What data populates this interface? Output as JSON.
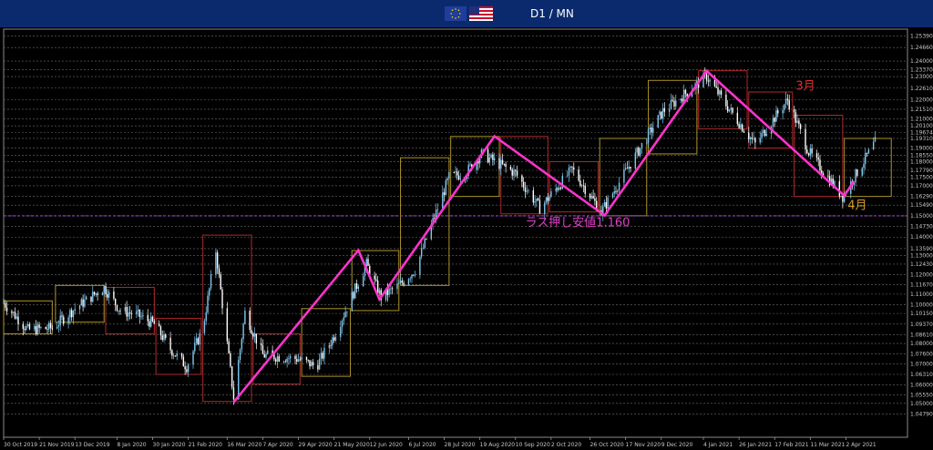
{
  "header": {
    "title": "D1 / MN",
    "flag_left_icon": "eu-flag-icon",
    "flag_right_icon": "us-flag-icon"
  },
  "chart_data": {
    "type": "candlestick",
    "title": "D1 / MN",
    "ylim": [
      1.0455,
      1.2565
    ],
    "xlim": [
      "2019-10-30",
      "2021-05-10"
    ],
    "grid": true,
    "y_tick_labels": [
      {
        "v": 1.253,
        "label": "1.25390"
      },
      {
        "v": 1.247,
        "label": "1.24660"
      },
      {
        "v": 1.24,
        "label": "1.24000"
      },
      {
        "v": 1.2355,
        "label": "1.23370"
      },
      {
        "v": 1.232,
        "label": "1.23000"
      },
      {
        "v": 1.226,
        "label": "1.22610"
      },
      {
        "v": 1.22,
        "label": "1.22000"
      },
      {
        "v": 1.2151,
        "label": "1.21510"
      },
      {
        "v": 1.21,
        "label": "1.21000"
      },
      {
        "v": 1.2065,
        "label": "1.20100"
      },
      {
        "v": 1.2031,
        "label": "1.19674"
      },
      {
        "v": 1.2,
        "label": "1.19310"
      },
      {
        "v": 1.195,
        "label": "1.19000"
      },
      {
        "v": 1.1913,
        "label": "1.18550"
      },
      {
        "v": 1.188,
        "label": "1.18000"
      },
      {
        "v": 1.1835,
        "label": "1.17790"
      },
      {
        "v": 1.18,
        "label": "1.17500"
      },
      {
        "v": 1.1755,
        "label": "1.17000"
      },
      {
        "v": 1.17,
        "label": "1.16290"
      },
      {
        "v": 1.1655,
        "label": "1.15490"
      },
      {
        "v": 1.16,
        "label": "1.15000"
      },
      {
        "v": 1.1545,
        "label": "1.14730"
      },
      {
        "v": 1.149,
        "label": "1.14000"
      },
      {
        "v": 1.143,
        "label": "1.13590"
      },
      {
        "v": 1.1395,
        "label": "1.13000"
      },
      {
        "v": 1.135,
        "label": "1.12430"
      },
      {
        "v": 1.1295,
        "label": "1.12000"
      },
      {
        "v": 1.1245,
        "label": "1.11670"
      },
      {
        "v": 1.1195,
        "label": "1.11000"
      },
      {
        "v": 1.114,
        "label": "1.10000"
      },
      {
        "v": 1.1095,
        "label": "1.10150"
      },
      {
        "v": 1.104,
        "label": "1.09370"
      },
      {
        "v": 1.0985,
        "label": "1.08610"
      },
      {
        "v": 1.094,
        "label": "1.08000"
      },
      {
        "v": 1.0885,
        "label": "1.07600"
      },
      {
        "v": 1.0835,
        "label": "1.07000"
      },
      {
        "v": 1.078,
        "label": "1.06310"
      },
      {
        "v": 1.0725,
        "label": "1.06000"
      },
      {
        "v": 1.0675,
        "label": "1.05550"
      },
      {
        "v": 1.063,
        "label": "1.05000"
      },
      {
        "v": 1.0575,
        "label": "1.04790"
      }
    ],
    "x_tick_labels": [
      {
        "d": "2019-10-30",
        "label": "30 Oct 2019"
      },
      {
        "d": "2019-11-21",
        "label": "21 Nov 2019"
      },
      {
        "d": "2019-12-13",
        "label": "13 Dec 2019"
      },
      {
        "d": "2020-01-08",
        "label": "8 Jan 2020"
      },
      {
        "d": "2020-01-30",
        "label": "30 Jan 2020"
      },
      {
        "d": "2020-02-21",
        "label": "21 Feb 2020"
      },
      {
        "d": "2020-03-16",
        "label": "16 Mar 2020"
      },
      {
        "d": "2020-04-07",
        "label": "7 Apr 2020"
      },
      {
        "d": "2020-04-29",
        "label": "29 Apr 2020"
      },
      {
        "d": "2020-05-21",
        "label": "21 May 2020"
      },
      {
        "d": "2020-06-12",
        "label": "12 Jun 2020"
      },
      {
        "d": "2020-07-06",
        "label": "6 Jul 2020"
      },
      {
        "d": "2020-07-28",
        "label": "28 Jul 2020"
      },
      {
        "d": "2020-08-19",
        "label": "19 Aug 2020"
      },
      {
        "d": "2020-09-10",
        "label": "10 Sep 2020"
      },
      {
        "d": "2020-10-02",
        "label": "2 Oct 2020"
      },
      {
        "d": "2020-10-26",
        "label": "26 Oct 2020"
      },
      {
        "d": "2020-11-17",
        "label": "17 Nov 2020"
      },
      {
        "d": "2020-12-09",
        "label": "9 Dec 2020"
      },
      {
        "d": "2021-01-04",
        "label": "4 Jan 2021"
      },
      {
        "d": "2021-01-26",
        "label": "26 Jan 2021"
      },
      {
        "d": "2021-02-17",
        "label": "17 Feb 2021"
      },
      {
        "d": "2021-03-11",
        "label": "11 Mar 2021"
      },
      {
        "d": "2021-04-02",
        "label": "2 Apr 2021"
      }
    ],
    "price_path": [
      {
        "d": "2019-10-30",
        "v": 1.115
      },
      {
        "d": "2019-11-14",
        "v": 1.101
      },
      {
        "d": "2019-11-29",
        "v": 1.102
      },
      {
        "d": "2019-12-13",
        "v": 1.112
      },
      {
        "d": "2019-12-31",
        "v": 1.123
      },
      {
        "d": "2020-01-10",
        "v": 1.111
      },
      {
        "d": "2020-01-20",
        "v": 1.109
      },
      {
        "d": "2020-01-31",
        "v": 1.104
      },
      {
        "d": "2020-02-10",
        "v": 1.091
      },
      {
        "d": "2020-02-20",
        "v": 1.082
      },
      {
        "d": "2020-03-01",
        "v": 1.102
      },
      {
        "d": "2020-03-09",
        "v": 1.142
      },
      {
        "d": "2020-03-20",
        "v": 1.066
      },
      {
        "d": "2020-03-27",
        "v": 1.11
      },
      {
        "d": "2020-04-07",
        "v": 1.088
      },
      {
        "d": "2020-04-29",
        "v": 1.086
      },
      {
        "d": "2020-05-10",
        "v": 1.082
      },
      {
        "d": "2020-05-21",
        "v": 1.098
      },
      {
        "d": "2020-06-10",
        "v": 1.135
      },
      {
        "d": "2020-06-19",
        "v": 1.118
      },
      {
        "d": "2020-06-30",
        "v": 1.124
      },
      {
        "d": "2020-07-10",
        "v": 1.132
      },
      {
        "d": "2020-07-31",
        "v": 1.18
      },
      {
        "d": "2020-08-10",
        "v": 1.182
      },
      {
        "d": "2020-08-20",
        "v": 1.192
      },
      {
        "d": "2020-09-10",
        "v": 1.182
      },
      {
        "d": "2020-09-25",
        "v": 1.164
      },
      {
        "d": "2020-10-15",
        "v": 1.184
      },
      {
        "d": "2020-11-02",
        "v": 1.162
      },
      {
        "d": "2020-11-20",
        "v": 1.187
      },
      {
        "d": "2020-12-10",
        "v": 1.214
      },
      {
        "d": "2021-01-06",
        "v": 1.232
      },
      {
        "d": "2021-01-20",
        "v": 1.215
      },
      {
        "d": "2021-02-05",
        "v": 1.197
      },
      {
        "d": "2021-02-25",
        "v": 1.22
      },
      {
        "d": "2021-03-10",
        "v": 1.193
      },
      {
        "d": "2021-03-31",
        "v": 1.17
      },
      {
        "d": "2021-04-20",
        "v": 1.198
      }
    ],
    "zigzag": [
      {
        "d": "2020-03-20",
        "v": 1.0636
      },
      {
        "d": "2020-06-05",
        "v": 1.1422
      },
      {
        "d": "2020-06-18",
        "v": 1.1168
      },
      {
        "d": "2020-08-28",
        "v": 1.2011
      },
      {
        "d": "2020-11-04",
        "v": 1.1602
      },
      {
        "d": "2021-01-06",
        "v": 1.2349
      },
      {
        "d": "2021-04-01",
        "v": 1.1704
      },
      {
        "d": "2021-04-07",
        "v": 1.178
      }
    ],
    "monthly_boxes": [
      {
        "from": "2019-10-30",
        "to": "2019-11-29",
        "high": 1.116,
        "low": 1.099,
        "color": "#ae9327"
      },
      {
        "from": "2019-12-01",
        "to": "2019-12-31",
        "high": 1.124,
        "low": 1.105,
        "color": "#ae9327"
      },
      {
        "from": "2020-01-01",
        "to": "2020-01-31",
        "high": 1.123,
        "low": 1.099,
        "color": "#b0282a"
      },
      {
        "from": "2020-02-01",
        "to": "2020-02-29",
        "high": 1.107,
        "low": 1.078,
        "color": "#b0282a"
      },
      {
        "from": "2020-03-01",
        "to": "2020-03-31",
        "high": 1.15,
        "low": 1.064,
        "color": "#b0282a"
      },
      {
        "from": "2020-04-01",
        "to": "2020-04-30",
        "high": 1.099,
        "low": 1.073,
        "color": "#b0282a"
      },
      {
        "from": "2020-05-01",
        "to": "2020-05-31",
        "high": 1.112,
        "low": 1.077,
        "color": "#ae9327"
      },
      {
        "from": "2020-06-01",
        "to": "2020-06-30",
        "high": 1.142,
        "low": 1.111,
        "color": "#ae9327"
      },
      {
        "from": "2020-07-01",
        "to": "2020-07-31",
        "high": 1.19,
        "low": 1.124,
        "color": "#ae9327"
      },
      {
        "from": "2020-08-01",
        "to": "2020-08-31",
        "high": 1.201,
        "low": 1.17,
        "color": "#ae9327"
      },
      {
        "from": "2020-09-01",
        "to": "2020-09-30",
        "high": 1.201,
        "low": 1.161,
        "color": "#b0282a"
      },
      {
        "from": "2020-10-01",
        "to": "2020-10-31",
        "high": 1.188,
        "low": 1.162,
        "color": "#b0282a"
      },
      {
        "from": "2020-11-01",
        "to": "2020-11-30",
        "high": 1.2,
        "low": 1.16,
        "color": "#ae9327"
      },
      {
        "from": "2020-12-01",
        "to": "2020-12-31",
        "high": 1.23,
        "low": 1.192,
        "color": "#ae9327"
      },
      {
        "from": "2021-01-01",
        "to": "2021-01-31",
        "high": 1.235,
        "low": 1.205,
        "color": "#b0282a"
      },
      {
        "from": "2021-02-01",
        "to": "2021-02-28",
        "high": 1.224,
        "low": 1.195,
        "color": "#b0282a"
      },
      {
        "from": "2021-03-01",
        "to": "2021-03-31",
        "high": 1.212,
        "low": 1.17,
        "color": "#b0282a"
      },
      {
        "from": "2021-04-01",
        "to": "2021-04-30",
        "high": 1.2,
        "low": 1.17,
        "color": "#ae9327"
      }
    ],
    "support_line": {
      "v": 1.16,
      "color": "#9c3fd0"
    },
    "annotations": [
      {
        "id": "ann-support",
        "text": "ラス押し安値1.160",
        "d": "2020-09-16",
        "v": 1.1545,
        "color": "#e040c8"
      },
      {
        "id": "ann-march",
        "text": "3月",
        "d": "2021-03-02",
        "v": 1.2252,
        "color": "#e03030"
      },
      {
        "id": "ann-april",
        "text": "4月",
        "d": "2021-04-03",
        "v": 1.1635,
        "color": "#d4a020"
      }
    ],
    "colors": {
      "zigzag": "#ff33cc",
      "up_candle": "#7fc7f0",
      "down_candle": "#ffffff",
      "grid": "#6e6e6e",
      "header": "#0b2a6e"
    }
  }
}
